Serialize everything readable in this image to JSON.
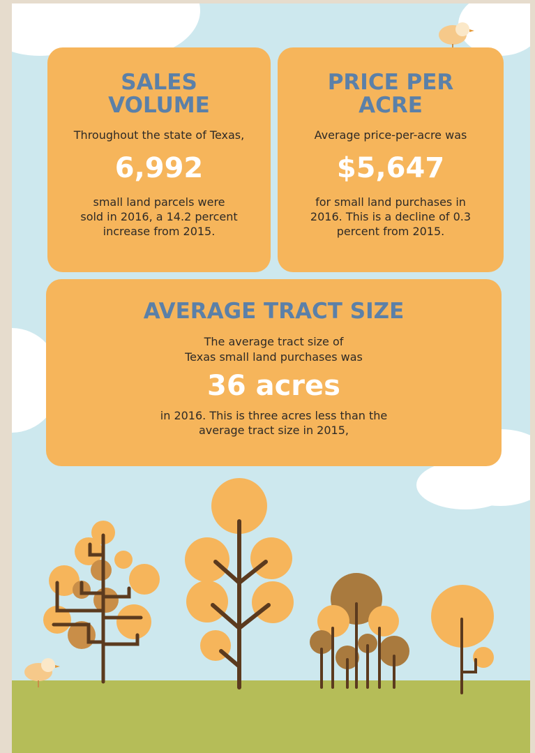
{
  "cards": [
    {
      "title_lines": [
        "SALES",
        "VOLUME"
      ],
      "intro": "Throughout the state of Texas,",
      "figure": "6,992",
      "description_lines": [
        "small land parcels were",
        "sold in 2016, a 14.2 percent",
        "increase from 2015."
      ]
    },
    {
      "title_lines": [
        "PRICE PER",
        "ACRE"
      ],
      "intro": "Average price-per-acre was",
      "figure": "$5,647",
      "description_lines": [
        "for small land purchases in",
        "2016. This is a decline of  0.3",
        "percent from 2015."
      ]
    },
    {
      "title_lines": [
        "AVERAGE TRACT SIZE"
      ],
      "intro_lines": [
        "The average tract size of",
        "Texas small land purchases was"
      ],
      "figure": "36 acres",
      "description_lines": [
        "in 2016. This is three acres less than the",
        "average tract size in 2015,"
      ]
    }
  ]
}
